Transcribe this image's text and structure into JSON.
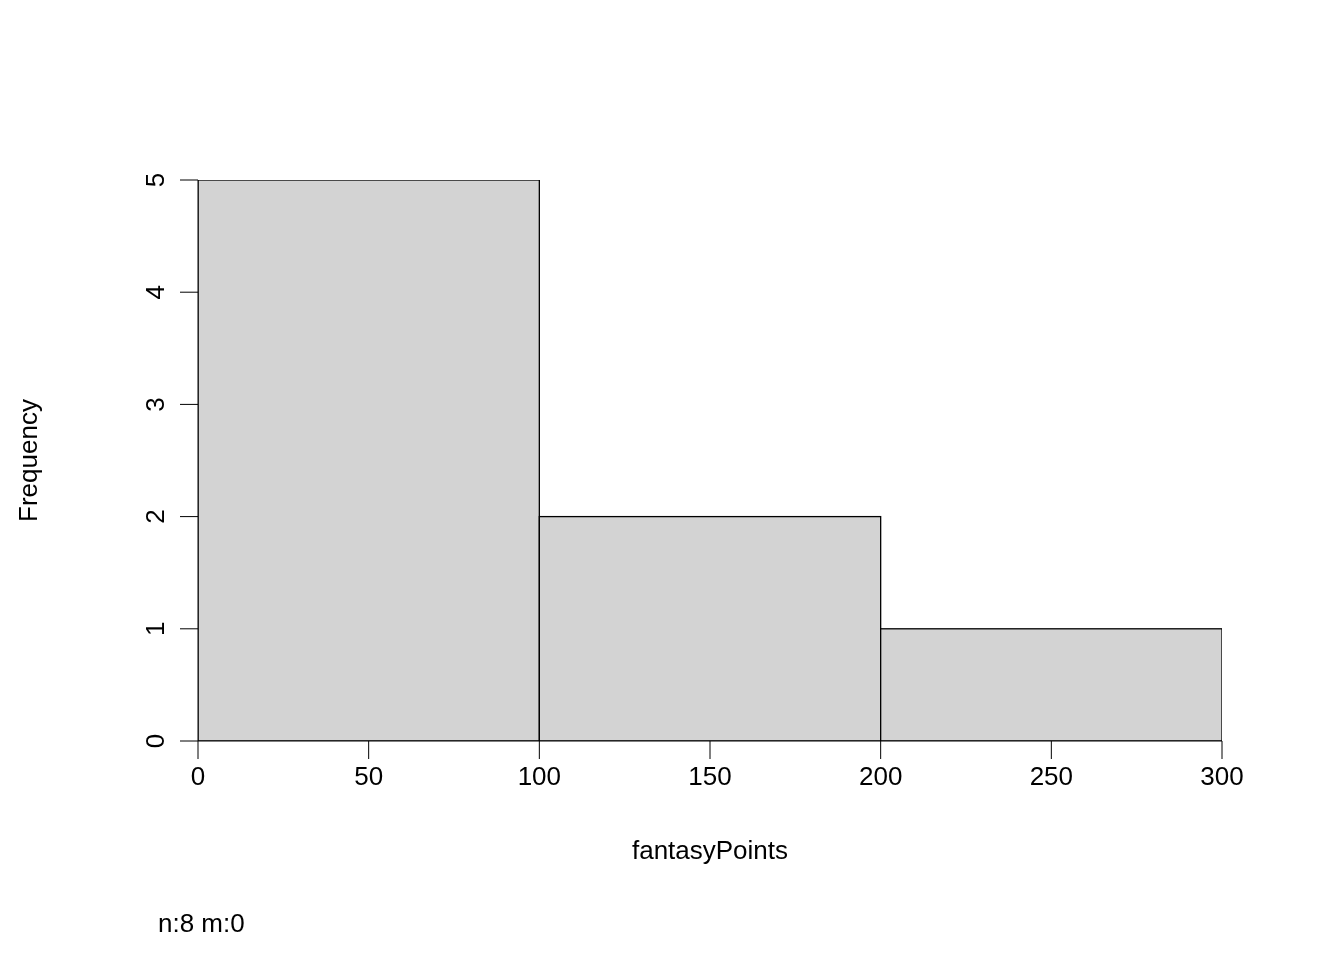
{
  "chart_data": {
    "type": "histogram",
    "xlabel": "fantasyPoints",
    "ylabel": "Frequency",
    "bins": [
      0,
      100,
      200,
      300
    ],
    "values": [
      5,
      2,
      1
    ],
    "color": "#d3d3d3",
    "xlim": [
      0,
      300
    ],
    "xticks": [
      0,
      50,
      100,
      150,
      200,
      250,
      300
    ],
    "ylim": [
      0,
      5
    ],
    "yticks": [
      0,
      1,
      2,
      3,
      4,
      5
    ],
    "annotations": [
      "n:8 m:0"
    ]
  }
}
